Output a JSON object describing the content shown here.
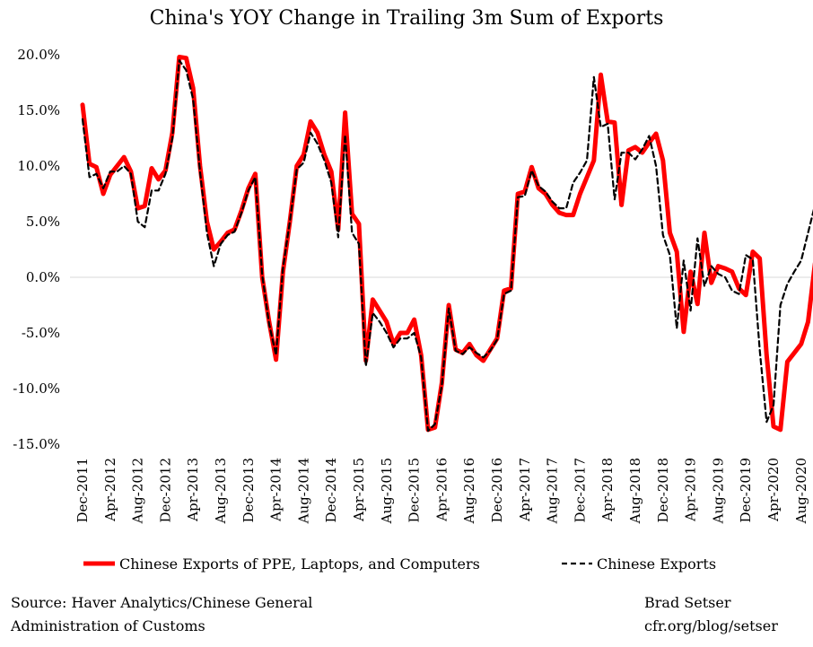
{
  "chart_data": {
    "type": "line",
    "title": "China's YOY Change in Trailing 3m Sum of Exports",
    "xlabel": "",
    "ylabel": "",
    "ylim": [
      -15,
      20
    ],
    "y_ticks": [
      "20.0%",
      "15.0%",
      "10.0%",
      "5.0%",
      "0.0%",
      "-5.0%",
      "-10.0%",
      "-15.0%"
    ],
    "x_start": "Dec-2011",
    "x_end": "Oct-2020",
    "x_tick_labels": [
      "Dec-2011",
      "Apr-2012",
      "Aug-2012",
      "Dec-2012",
      "Apr-2013",
      "Aug-2013",
      "Dec-2013",
      "Apr-2014",
      "Aug-2014",
      "Dec-2014",
      "Apr-2015",
      "Aug-2015",
      "Dec-2015",
      "Apr-2016",
      "Aug-2016",
      "Dec-2016",
      "Apr-2017",
      "Aug-2017",
      "Dec-2017",
      "Apr-2018",
      "Aug-2018",
      "Dec-2018",
      "Apr-2019",
      "Aug-2019",
      "Dec-2019",
      "Apr-2020",
      "Aug-2020"
    ],
    "grid": false,
    "legend_position": "bottom",
    "series": [
      {
        "name": "Chinese Exports of PPE, Laptops, and Computers",
        "color": "#ff0000",
        "style": "solid",
        "values": [
          15.5,
          10.2,
          9.9,
          7.5,
          9.2,
          10.0,
          10.8,
          9.5,
          6.2,
          6.4,
          9.8,
          8.8,
          9.6,
          13.0,
          19.8,
          19.7,
          17.0,
          10.0,
          5.0,
          2.5,
          3.2,
          4.0,
          4.3,
          6.0,
          8.0,
          9.3,
          0.0,
          -4.0,
          -7.4,
          0.5,
          5.0,
          10.0,
          11.0,
          14.0,
          13.0,
          11.0,
          9.5,
          4.3,
          14.8,
          5.7,
          4.8,
          -7.5,
          -2.0,
          -3.0,
          -4.0,
          -6.0,
          -5.0,
          -5.0,
          -3.8,
          -7.0,
          -13.7,
          -13.5,
          -9.5,
          -2.5,
          -6.5,
          -6.8,
          -6.0,
          -7.0,
          -7.5,
          -6.5,
          -5.5,
          -1.2,
          -1.0,
          7.5,
          7.7,
          9.9,
          8.0,
          7.5,
          6.5,
          5.8,
          5.6,
          5.6,
          7.5,
          9.0,
          10.5,
          18.2,
          14.0,
          13.9,
          6.5,
          11.4,
          11.7,
          11.2,
          12.1,
          12.9,
          10.5,
          4.0,
          2.3,
          -4.9,
          0.5,
          -2.4,
          4.0,
          -0.5,
          1.0,
          0.8,
          0.5,
          -1.0,
          -1.6,
          2.3,
          1.7,
          -7.0,
          -13.4,
          -13.7,
          -7.6,
          -6.8,
          -6.0,
          -4.0,
          1.2,
          4.9
        ]
      },
      {
        "name": "Chinese Exports",
        "color": "#000000",
        "style": "dashed",
        "values": [
          14.2,
          9.0,
          9.3,
          8.0,
          9.5,
          9.5,
          10.0,
          9.3,
          5.0,
          4.5,
          7.8,
          7.8,
          9.3,
          12.5,
          19.5,
          18.6,
          16.0,
          9.5,
          4.0,
          1.0,
          3.0,
          3.8,
          4.1,
          5.8,
          7.8,
          9.0,
          0.2,
          -4.2,
          -7.0,
          0.8,
          5.0,
          9.7,
          10.3,
          13.0,
          12.0,
          10.5,
          8.5,
          3.6,
          12.8,
          4.0,
          3.0,
          -8.0,
          -3.2,
          -4.0,
          -5.0,
          -6.3,
          -5.5,
          -5.5,
          -5.0,
          -7.2,
          -13.8,
          -13.2,
          -9.7,
          -2.8,
          -6.6,
          -6.9,
          -6.3,
          -6.8,
          -7.2,
          -6.6,
          -5.6,
          -1.5,
          -1.2,
          7.2,
          7.3,
          9.6,
          8.2,
          7.7,
          6.8,
          6.2,
          6.2,
          8.5,
          9.4,
          10.5,
          18.0,
          13.5,
          13.8,
          7.0,
          11.2,
          11.2,
          10.6,
          11.5,
          12.7,
          10.0,
          3.8,
          2.0,
          -4.6,
          1.5,
          -3.0,
          3.5,
          -0.8,
          1.0,
          0.3,
          0.0,
          -1.2,
          -1.5,
          2.0,
          1.6,
          -6.5,
          -13.0,
          -11.5,
          -2.5,
          -0.6,
          0.5,
          1.5,
          4.0,
          6.5,
          8.6
        ]
      }
    ]
  },
  "source_note": {
    "line1": "Source: Haver Analytics/Chinese General",
    "line2": "Administration of Customs"
  },
  "author_note": {
    "line1": "Brad Setser",
    "line2": "cfr.org/blog/setser"
  }
}
